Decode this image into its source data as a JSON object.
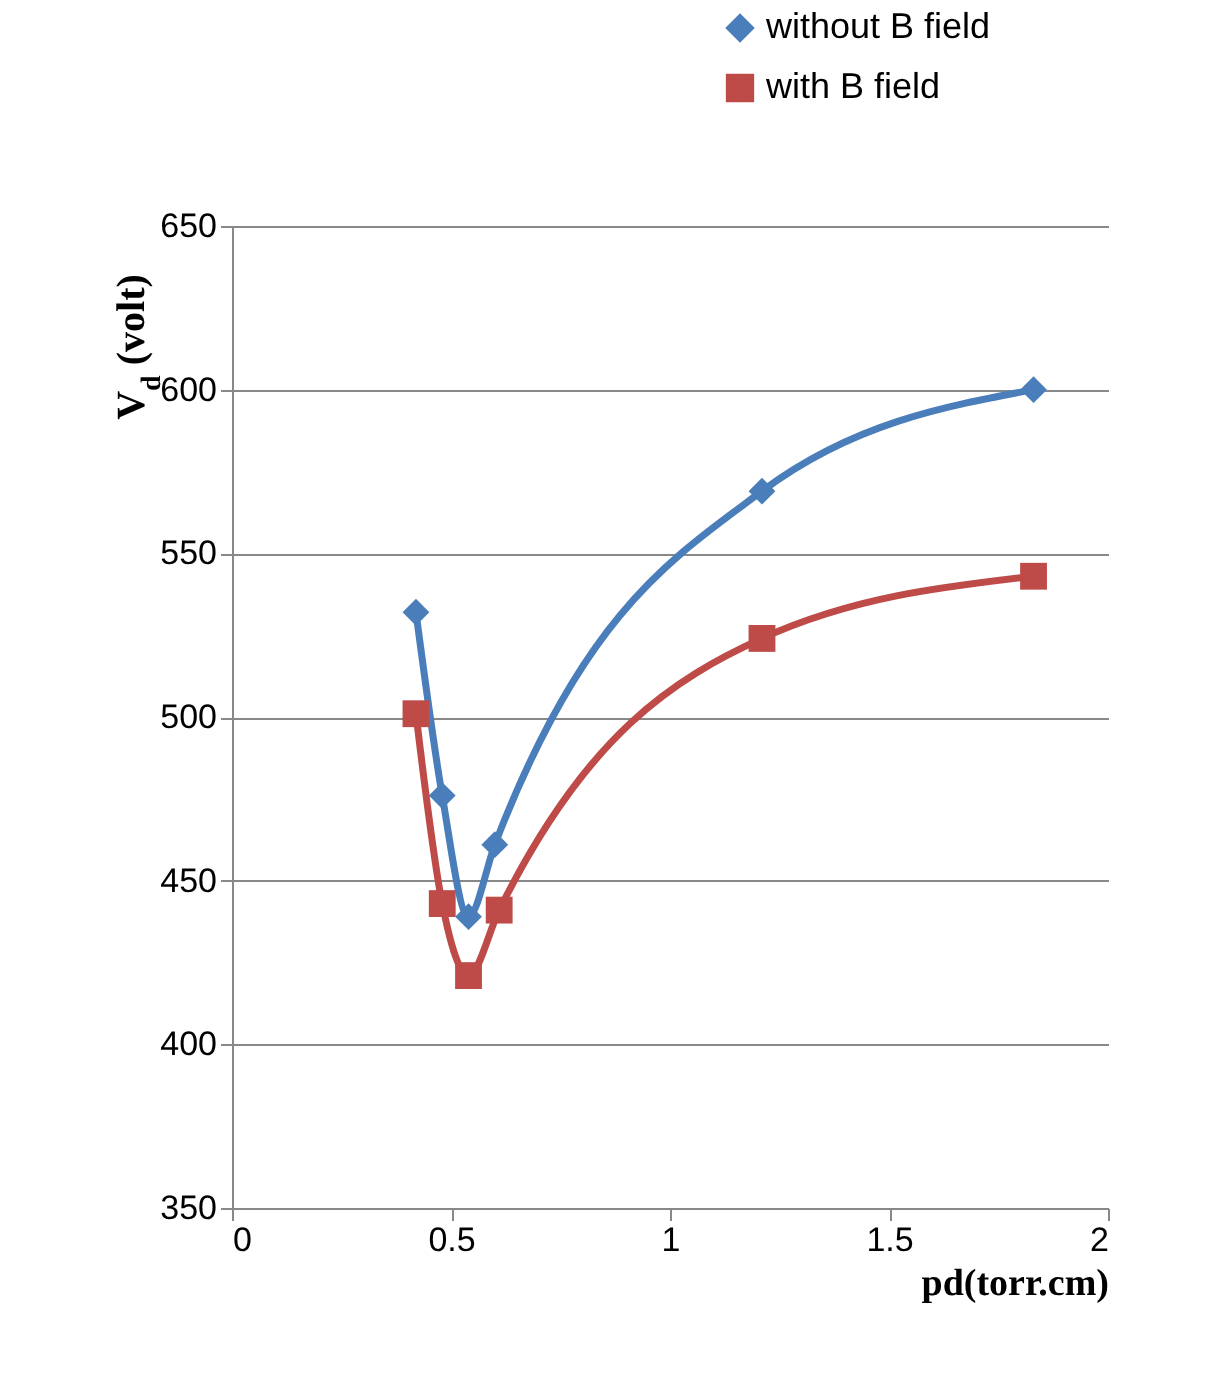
{
  "chart_data": {
    "type": "line",
    "xlabel": "pd(torr.cm)",
    "ylabel": "V$_{d}$ (volt)",
    "xlim": [
      0,
      2
    ],
    "xticks": [
      0,
      0.5,
      1,
      1.5,
      2
    ],
    "ylim": [
      350,
      650
    ],
    "yticks": [
      350,
      400,
      450,
      500,
      550,
      600,
      650
    ],
    "grid": "y",
    "legend": "top right",
    "series": [
      {
        "name": "without  B field",
        "color": "#4a7ebb",
        "marker": "diamond",
        "x": [
          0.42,
          0.48,
          0.54,
          0.6,
          1.21,
          1.83
        ],
        "values": [
          532,
          476,
          439,
          461,
          569,
          600
        ]
      },
      {
        "name": "with B field",
        "color": "#be4b48",
        "marker": "square",
        "x": [
          0.42,
          0.48,
          0.54,
          0.61,
          1.21,
          1.83
        ],
        "values": [
          501,
          443,
          421,
          441,
          524,
          543
        ]
      }
    ]
  }
}
